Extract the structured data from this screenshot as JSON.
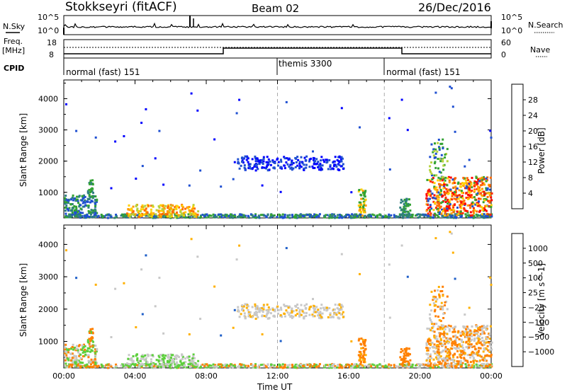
{
  "header": {
    "station": "Stokkseyri (fitACF)",
    "beam": "Beam 02",
    "date": "26/Dec/2016"
  },
  "noise_panel": {
    "left_label": "N.Sky",
    "right_label": "N.Search",
    "top_tick": "10^5",
    "bottom_tick": "10^0",
    "right_top_tick": "10^5",
    "right_bottom_tick": "10^0"
  },
  "freq_panel": {
    "left_label_1": "Freq.",
    "left_label_2": "[MHz]",
    "left_top_tick": "18",
    "left_bottom_tick": "8",
    "right_label": "Nave",
    "right_top_tick": "60",
    "right_bottom_tick": "0"
  },
  "cpid_panel": {
    "label": "CPID",
    "segments": [
      "normal (fast) 151",
      "themis 3300",
      "normal (fast) 151"
    ]
  },
  "chart_data": [
    {
      "type": "heatmap",
      "title": "Power",
      "ylabel": "Slant Range [km]",
      "ylim": [
        180,
        4600
      ],
      "yticks": [
        "1000",
        "2000",
        "3000",
        "4000"
      ],
      "colorbar_label": "Power [dB]",
      "colorbar_ticks": [
        "28",
        "24",
        "20",
        "16",
        "12",
        "8",
        "4"
      ],
      "colors": [
        "#0000ff",
        "#1f4fd1",
        "#2f7f7f",
        "#33a233",
        "#b4d23c",
        "#ffd000",
        "#ff9d00",
        "#ff6a00",
        "#ff2a00",
        "#ff0000"
      ]
    },
    {
      "type": "heatmap",
      "title": "Velocity",
      "ylabel": "Slant Range [km]",
      "xlabel": "Time UT",
      "ylim": [
        180,
        4600
      ],
      "yticks": [
        "1000",
        "2000",
        "3000",
        "4000"
      ],
      "xticks": [
        "00:00",
        "04:00",
        "08:00",
        "12:00",
        "16:00",
        "20:00",
        "00:00"
      ],
      "colorbar_label": "Velocity [m s^-1]",
      "colorbar_ticks": [
        "1000",
        "500",
        "100",
        "25",
        "−25",
        "−100",
        "−500",
        "−1000"
      ],
      "colors": [
        "#0000ff",
        "#1f5fc8",
        "#2f8f4f",
        "#5ccf3c",
        "#c8c8c8",
        "#ffb000",
        "#ff8000",
        "#ff4000",
        "#ff0000"
      ]
    }
  ]
}
